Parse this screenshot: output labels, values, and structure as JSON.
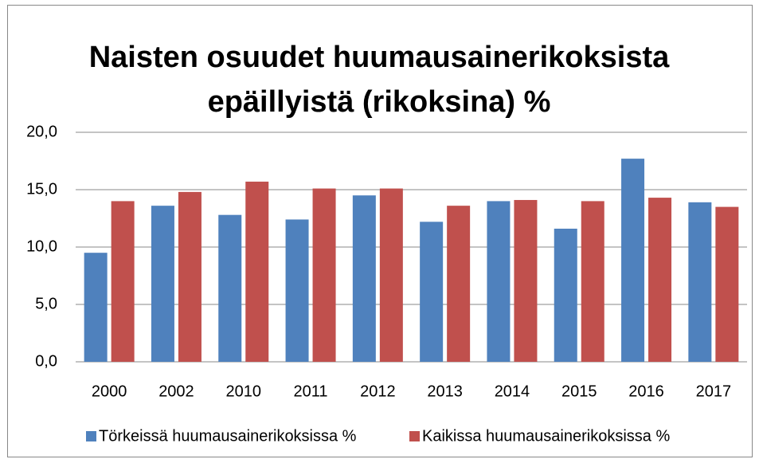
{
  "chart_data": {
    "type": "bar",
    "title": [
      "Naisten osuudet huumausainerikoksista",
      "epäillyistä (rikoksina) %"
    ],
    "categories": [
      "2000",
      "2002",
      "2010",
      "2011",
      "2012",
      "2013",
      "2014",
      "2015",
      "2016",
      "2017"
    ],
    "series": [
      {
        "name": "Törkeissä huumausainerikoksissa %",
        "color": "#4f81bd",
        "values": [
          9.5,
          13.6,
          12.8,
          12.4,
          14.5,
          12.2,
          14.0,
          11.6,
          17.7,
          13.9
        ]
      },
      {
        "name": "Kaikissa huumausainerikoksissa %",
        "color": "#c0504d",
        "values": [
          14.0,
          14.8,
          15.7,
          15.1,
          15.1,
          13.6,
          14.1,
          14.0,
          14.3,
          13.5
        ]
      }
    ],
    "ylim": [
      0,
      20
    ],
    "yticks": [
      {
        "value": 0,
        "label": "0,0"
      },
      {
        "value": 5,
        "label": "5,0"
      },
      {
        "value": 10,
        "label": "10,0"
      },
      {
        "value": 15,
        "label": "15,0"
      },
      {
        "value": 20,
        "label": "20,0"
      }
    ],
    "grid": true,
    "legend": "bottom"
  }
}
